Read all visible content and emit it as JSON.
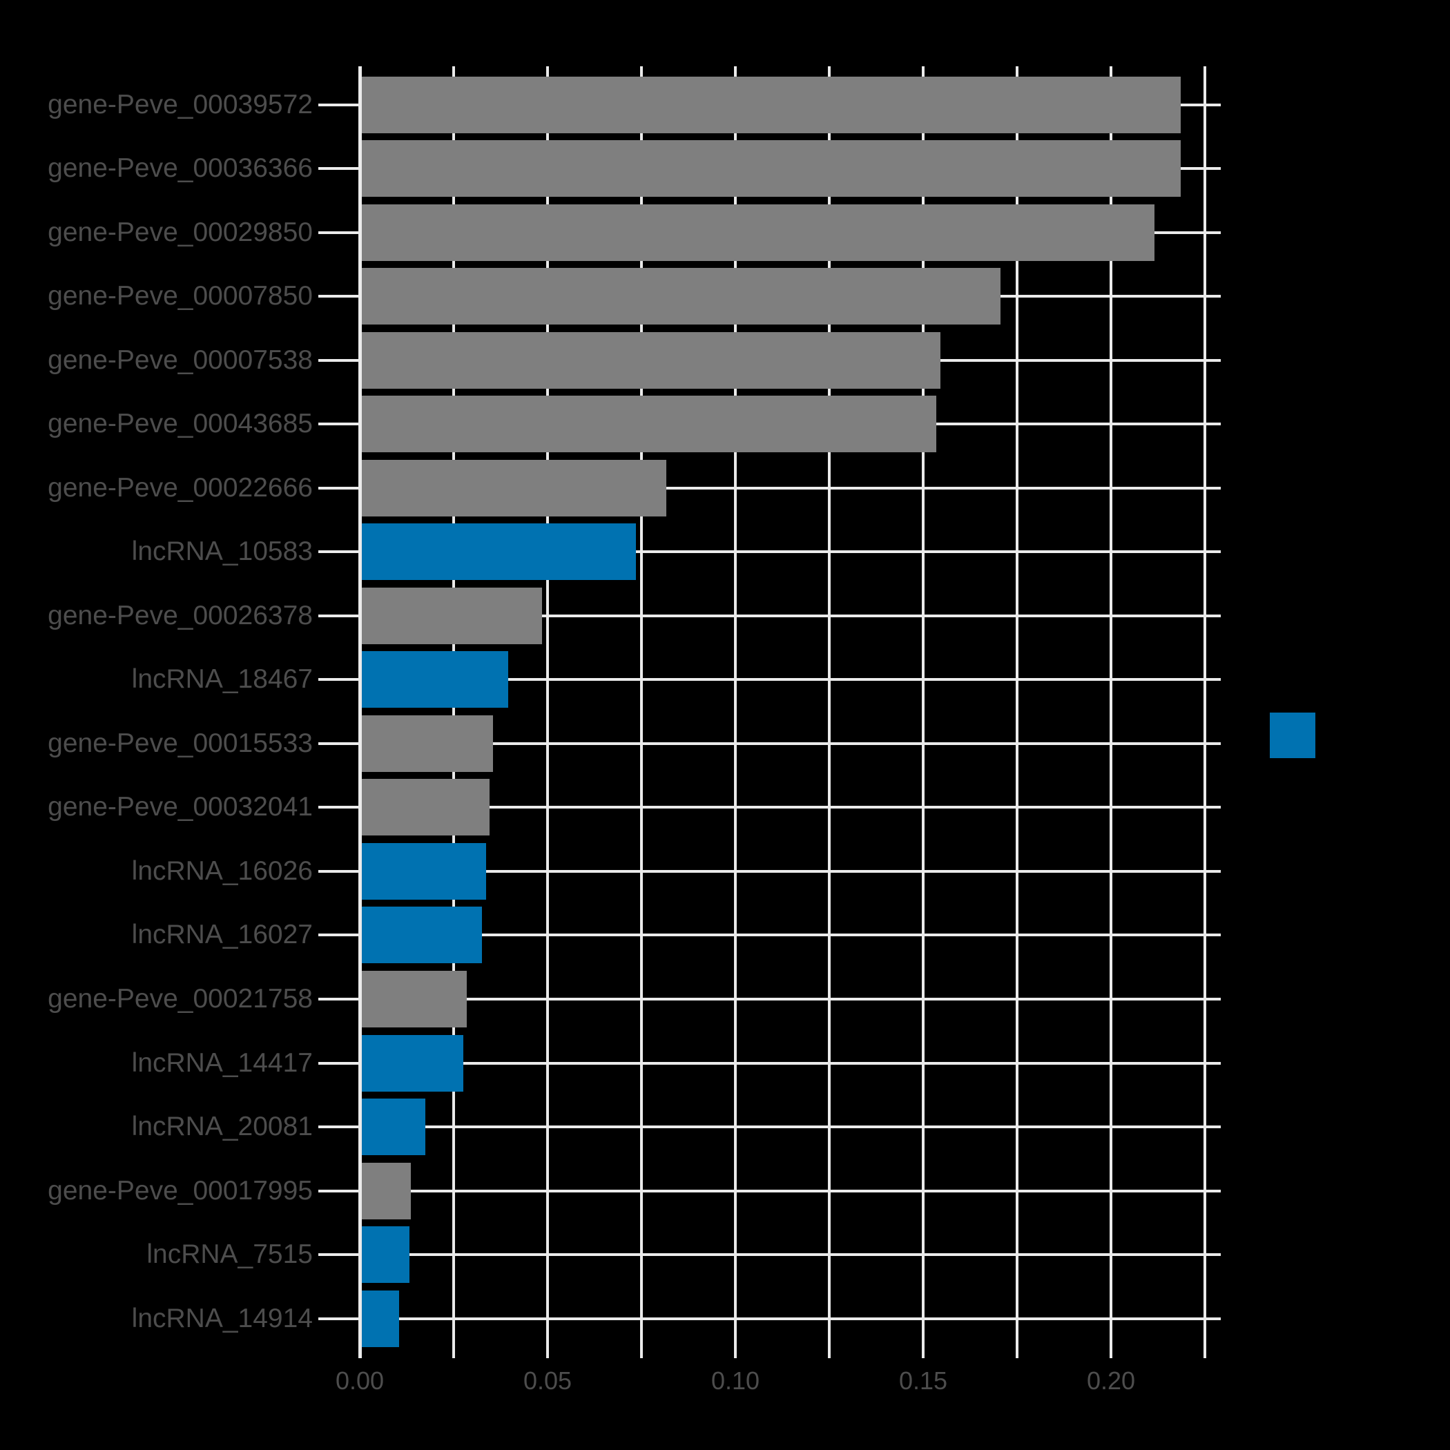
{
  "chart_data": {
    "type": "bar",
    "orientation": "horizontal",
    "title": "",
    "xlabel": "",
    "ylabel": "",
    "categories": [
      "gene-Peve_00039572",
      "gene-Peve_00036366",
      "gene-Peve_00029850",
      "gene-Peve_00007850",
      "gene-Peve_00007538",
      "gene-Peve_00043685",
      "gene-Peve_00022666",
      "lncRNA_10583",
      "gene-Peve_00026378",
      "lncRNA_18467",
      "gene-Peve_00015533",
      "gene-Peve_00032041",
      "lncRNA_16026",
      "lncRNA_16027",
      "gene-Peve_00021758",
      "lncRNA_14417",
      "lncRNA_20081",
      "gene-Peve_00017995",
      "lncRNA_7515",
      "lncRNA_14914"
    ],
    "values": [
      0.218,
      0.218,
      0.211,
      0.17,
      0.154,
      0.153,
      0.081,
      0.073,
      0.048,
      0.039,
      0.035,
      0.034,
      0.033,
      0.032,
      0.028,
      0.027,
      0.017,
      0.013,
      0.0127,
      0.01
    ],
    "types": [
      "gene",
      "gene",
      "gene",
      "gene",
      "gene",
      "gene",
      "gene",
      "lncRNA",
      "gene",
      "lncRNA",
      "gene",
      "gene",
      "lncRNA",
      "lncRNA",
      "gene",
      "lncRNA",
      "lncRNA",
      "gene",
      "lncRNA",
      "lncRNA"
    ],
    "x_tick_values": [
      0.0,
      0.05,
      0.1,
      0.15,
      0.2
    ],
    "x_tick_labels": [
      "0.00",
      "0.05",
      "0.10",
      "0.15",
      "0.20"
    ],
    "x_grid_step": 0.025,
    "x_grid_max": 0.225,
    "xlim": [
      0,
      0.229
    ],
    "grid": true,
    "legend": {
      "position": "center-right",
      "entries": [
        {
          "label": "",
          "type": "lncRNA"
        }
      ]
    }
  },
  "colors": {
    "background": "#000000",
    "type_colors": {
      "gene": "#7f7f7f",
      "lncRNA": "#0072b1"
    },
    "grid": "#eaeaea",
    "axis": "#ebebeb",
    "text": "#4d4d4d"
  }
}
